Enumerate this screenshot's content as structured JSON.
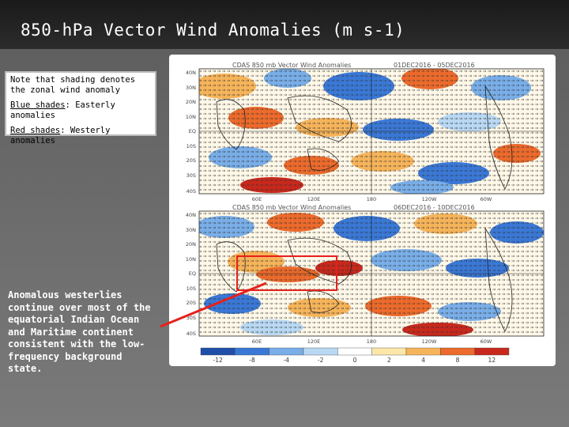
{
  "slide": {
    "title": "850-hPa Vector Wind Anomalies  (m s-1)",
    "note_box": {
      "line1": "Note that shading denotes the zonal wind anomaly",
      "blue_label": "Blue shades",
      "blue_text": ": Easterly anomalies",
      "red_label": "Red shades",
      "red_text": ": Westerly anomalies"
    },
    "bottom_note": "Anomalous westerlies continue over most of the equatorial Indian Ocean and Maritime continent consistent with the low-frequency background state."
  },
  "figure": {
    "top_map": {
      "header_left": "CDAS 850 mb Vector Wind Anomalies",
      "header_right": "01DEC2016 - 05DEC2016",
      "lat_labels": [
        "40N",
        "30N",
        "20N",
        "10N",
        "EQ",
        "10S",
        "20S",
        "30S",
        "40S"
      ],
      "lon_labels": [
        "60E",
        "120E",
        "180",
        "120W",
        "60W"
      ]
    },
    "bottom_map": {
      "header_left": "CDAS 850 mb Vector Wind Anomalies",
      "header_right": "06DEC2016 - 10DEC2016",
      "lat_labels": [
        "40N",
        "30N",
        "20N",
        "10N",
        "EQ",
        "10S",
        "20S",
        "30S",
        "40S"
      ],
      "lon_labels": [
        "60E",
        "120E",
        "180",
        "120W",
        "60W"
      ]
    },
    "colorbar_labels": [
      "-12",
      "-8",
      "-4",
      "-2",
      "0",
      "2",
      "4",
      "8",
      "12"
    ],
    "colorbar_colors": [
      "#1f4fa8",
      "#3a78d6",
      "#79aee8",
      "#b9d8f3",
      "#ffffff",
      "#fde7a8",
      "#f6b45a",
      "#ec6a2b",
      "#c8281c"
    ],
    "highlight_color": "#e8201c"
  }
}
